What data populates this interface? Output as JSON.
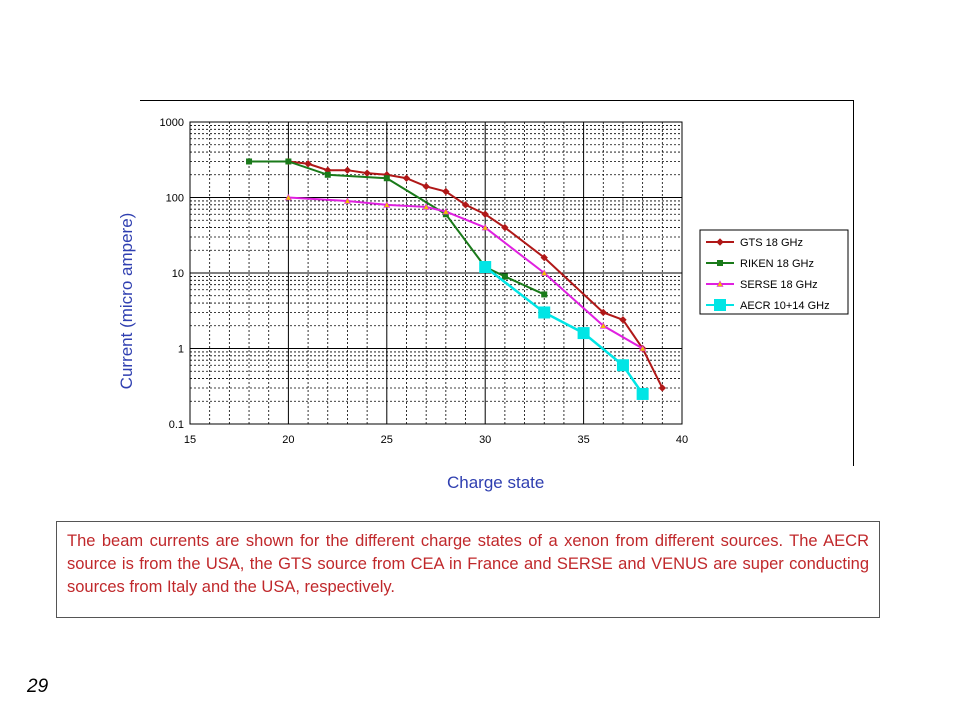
{
  "chart_data": {
    "type": "line",
    "title": "",
    "xlabel": "Charge state",
    "ylabel": "Current (micro ampere)",
    "xlim": [
      15,
      40
    ],
    "ylim": [
      0.1,
      1000
    ],
    "yscale": "log",
    "x_ticks": [
      "15",
      "20",
      "25",
      "30",
      "35",
      "40"
    ],
    "y_ticks": [
      "0.1",
      "1",
      "10",
      "100",
      "1000"
    ],
    "grid": true,
    "legend_position": "right",
    "series": [
      {
        "name": "GTS 18 GHz",
        "color": "#b01818",
        "marker": "diamond",
        "points": [
          [
            20,
            300
          ],
          [
            21,
            280
          ],
          [
            22,
            230
          ],
          [
            23,
            230
          ],
          [
            24,
            210
          ],
          [
            25,
            200
          ],
          [
            26,
            180
          ],
          [
            27,
            140
          ],
          [
            28,
            120
          ],
          [
            29,
            80
          ],
          [
            30,
            60
          ],
          [
            31,
            40
          ],
          [
            33,
            16
          ],
          [
            36,
            3
          ],
          [
            37,
            2.4
          ],
          [
            38,
            1
          ],
          [
            39,
            0.3
          ]
        ]
      },
      {
        "name": "RIKEN 18 GHz",
        "color": "#1a7a1a",
        "marker": "square",
        "points": [
          [
            18,
            300
          ],
          [
            20,
            300
          ],
          [
            22,
            200
          ],
          [
            25,
            180
          ],
          [
            28,
            60
          ],
          [
            30,
            12
          ],
          [
            31,
            9
          ],
          [
            33,
            5.2
          ]
        ]
      },
      {
        "name": "SERSE 18 GHz",
        "color": "#e020e0",
        "marker": "triangle",
        "points": [
          [
            20,
            100
          ],
          [
            23,
            90
          ],
          [
            25,
            80
          ],
          [
            27,
            75
          ],
          [
            28,
            65
          ],
          [
            30,
            40
          ],
          [
            33,
            10
          ],
          [
            36,
            2
          ],
          [
            38,
            1
          ]
        ]
      },
      {
        "name": "AECR 10+14 GHz",
        "color": "#00e5e5",
        "marker": "square-large",
        "points": [
          [
            30,
            12
          ],
          [
            33,
            3
          ],
          [
            35,
            1.6
          ],
          [
            37,
            0.6
          ],
          [
            38,
            0.25
          ]
        ]
      }
    ]
  },
  "caption": "The beam currents are shown for the different charge states of a xenon from different sources. The AECR source is from the USA, the GTS source from CEA in France and SERSE and VENUS are super conducting sources from Italy and the USA, respectively.",
  "slide_number": "29"
}
